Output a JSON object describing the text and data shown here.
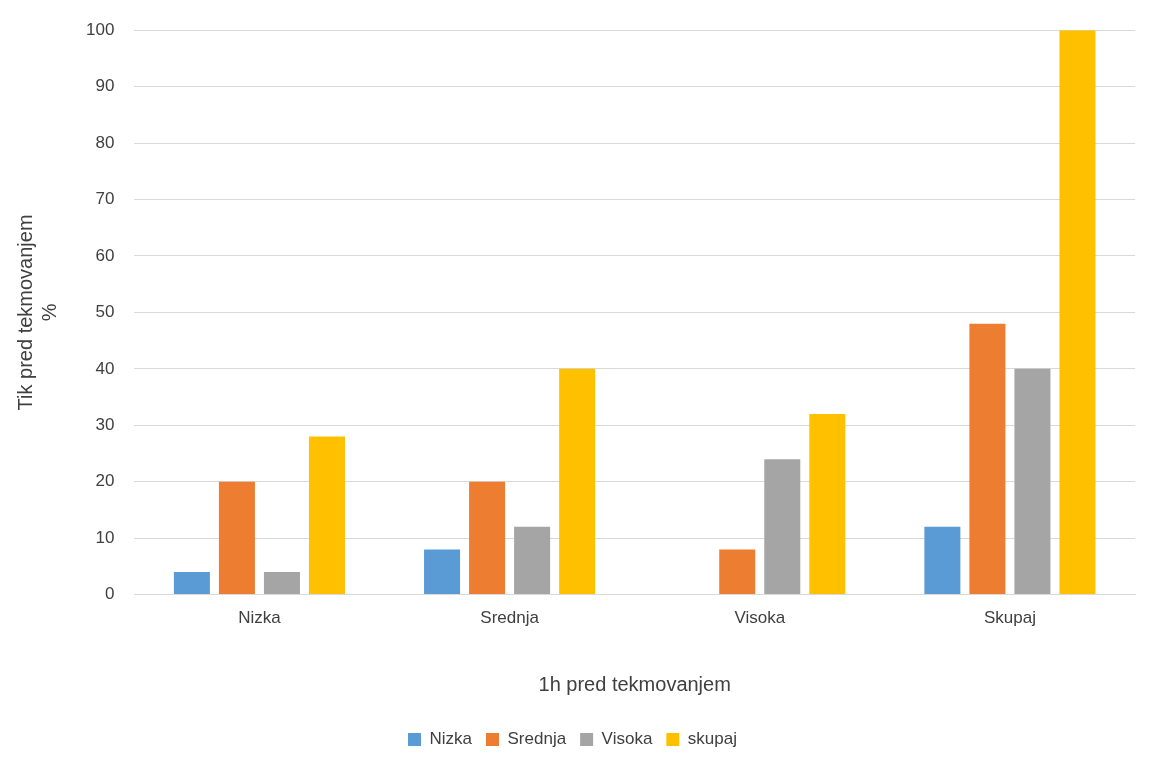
{
  "chart_data": {
    "type": "bar",
    "xlabel": "1h pred tekmovanjem",
    "ylabel": "Tik pred tekmovanjem\n%",
    "categories": [
      "Nizka",
      "Srednja",
      "Visoka",
      "Skupaj"
    ],
    "series": [
      {
        "name": "Nizka",
        "color": "#5b9bd5",
        "values": [
          4,
          8,
          0,
          12
        ]
      },
      {
        "name": "Srednja",
        "color": "#ed7d31",
        "values": [
          20,
          20,
          8,
          48
        ]
      },
      {
        "name": "Visoka",
        "color": "#a5a5a5",
        "values": [
          4,
          12,
          24,
          40
        ]
      },
      {
        "name": "skupaj",
        "color": "#ffc000",
        "values": [
          28,
          40,
          32,
          100
        ]
      }
    ],
    "ylim": [
      0,
      100
    ],
    "yticks": [
      0,
      10,
      20,
      30,
      40,
      50,
      60,
      70,
      80,
      90,
      100
    ],
    "grid": "y",
    "legend": "bottom"
  }
}
